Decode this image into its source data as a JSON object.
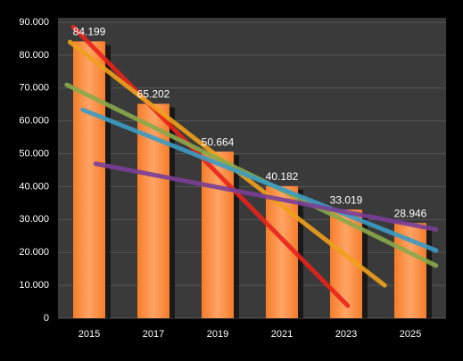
{
  "chart_data": {
    "type": "bar",
    "categories": [
      "2015",
      "2017",
      "2019",
      "2021",
      "2023",
      "2025"
    ],
    "values": [
      84.199,
      65.202,
      50.664,
      40.182,
      33.019,
      28.946
    ],
    "color": "#f58a3a",
    "ylim": [
      0,
      90
    ],
    "yticks": [
      0,
      {
        "value": 10,
        "label": "10.000"
      },
      {
        "value": 20,
        "label": "20.000"
      },
      {
        "value": 30,
        "label": "30.000"
      },
      {
        "value": 40,
        "label": "40.000"
      },
      {
        "value": 50,
        "label": "50.000"
      },
      {
        "value": 60,
        "label": "60.000"
      },
      {
        "value": 70,
        "label": "70.000"
      },
      {
        "value": 80,
        "label": "80.000"
      },
      {
        "value": 90,
        "label": "90.000"
      }
    ],
    "grid": true,
    "trendlines": [
      {
        "color": "#e8231c",
        "x": [
          2014.5,
          2023.05
        ],
        "values": [
          88.6,
          3.8
        ]
      },
      {
        "color": "#f0a11a",
        "x": [
          2014.4,
          2024.2
        ],
        "values": [
          84,
          10
        ]
      },
      {
        "color": "#8aa94a",
        "x": [
          2014.3,
          2025.8
        ],
        "values": [
          71,
          16
        ]
      },
      {
        "color": "#3b9cc4",
        "x": [
          2014.8,
          2025.8
        ],
        "values": [
          63.4,
          20.6
        ]
      },
      {
        "color": "#7a3f98",
        "x": [
          2015.2,
          2025.8
        ],
        "values": [
          47,
          27
        ]
      }
    ]
  }
}
